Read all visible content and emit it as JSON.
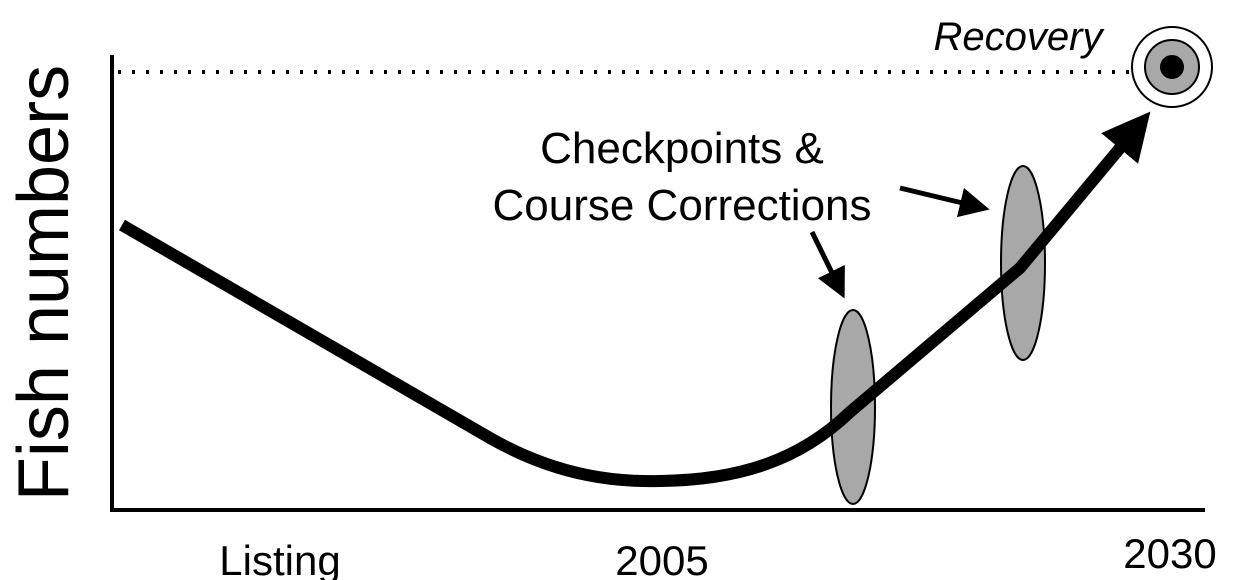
{
  "y_axis_label": "Fish numbers",
  "x_labels": [
    "Listing",
    "2005",
    "2030"
  ],
  "goal_label": "Recovery",
  "checkpoint_label": [
    "Checkpoints &",
    "Course Corrections"
  ]
}
